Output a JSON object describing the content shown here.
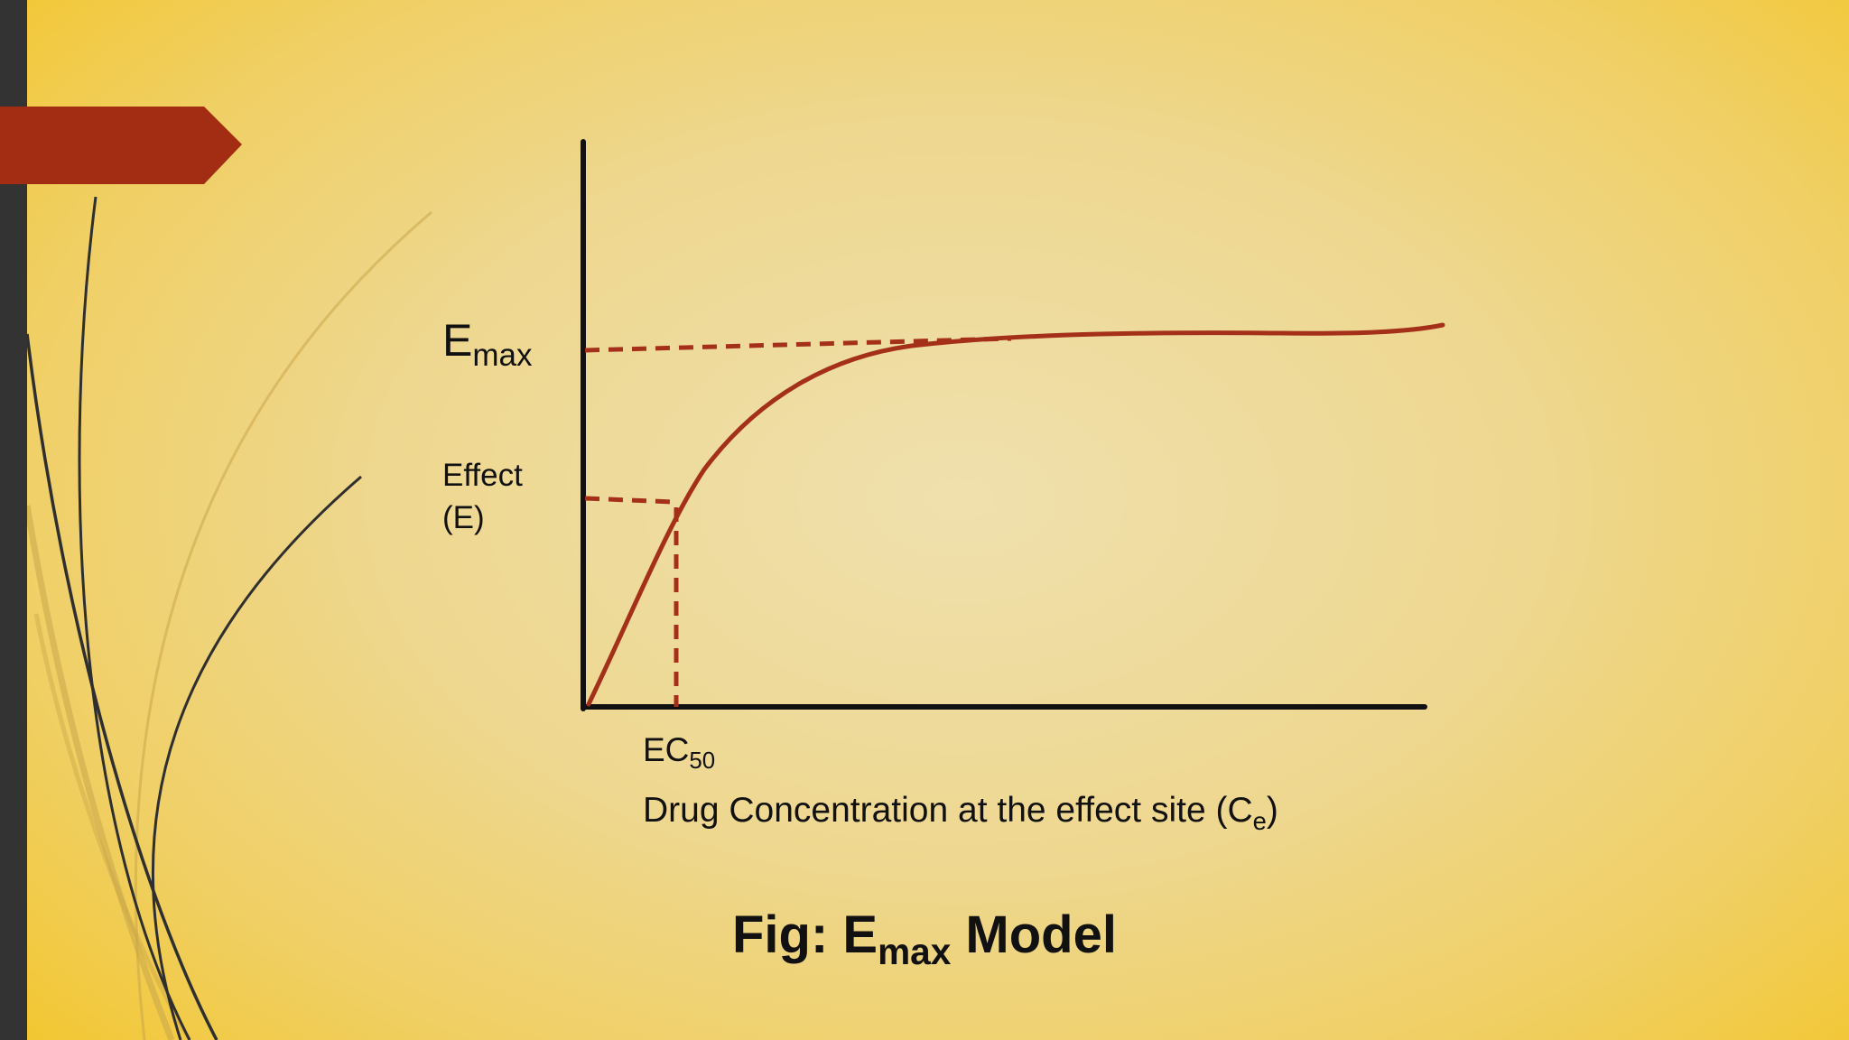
{
  "diagram": {
    "y_peak_label": {
      "main": "E",
      "sub": "max"
    },
    "y_axis_label": {
      "line1": "Effect",
      "line2": "(E)"
    },
    "x_marker_label": {
      "main": "EC",
      "sub": "50"
    },
    "x_axis_label": {
      "main": "Drug Concentration at the effect site (C",
      "sub": "e",
      "end": ")"
    },
    "curve_type": "hyperbolic saturation (Emax model)",
    "colors": {
      "curve": "#a5301a",
      "axes": "#111111",
      "guides": "#a5301a"
    }
  },
  "caption": {
    "prefix": "Fig: E",
    "sub": "max",
    "suffix": " Model"
  },
  "theme": {
    "background": "#f0d88f",
    "left_bar": "#333333",
    "accent_tab": "#a32d13"
  }
}
